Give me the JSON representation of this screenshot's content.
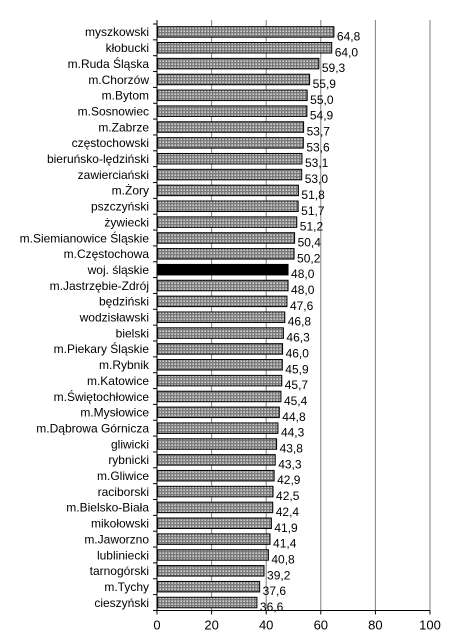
{
  "chart_data": {
    "type": "bar",
    "orientation": "horizontal",
    "categories": [
      "myszkowski",
      "kłobucki",
      "m.Ruda Śląska",
      "m.Chorzów",
      "m.Bytom",
      "m.Sosnowiec",
      "m.Zabrze",
      "częstochowski",
      "bieruńsko-lędziński",
      "zawierciański",
      "m.Żory",
      "pszczyński",
      "żywiecki",
      "m.Siemianowice Śląskie",
      "m.Częstochowa",
      "woj. śląskie",
      "m.Jastrzębie-Zdrój",
      "będziński",
      "wodzisławski",
      "bielski",
      "m.Piekary Śląskie",
      "m.Rybnik",
      "m.Katowice",
      "m.Świętochłowice",
      "m.Mysłowice",
      "m.Dąbrowa Górnicza",
      "gliwicki",
      "rybnicki",
      "m.Gliwice",
      "raciborski",
      "m.Bielsko-Biała",
      "mikołowski",
      "m.Jaworzno",
      "lubliniecki",
      "tarnogórski",
      "m.Tychy",
      "cieszyński"
    ],
    "values": [
      64.8,
      64.0,
      59.3,
      55.9,
      55.0,
      54.9,
      53.7,
      53.6,
      53.1,
      53.0,
      51.8,
      51.7,
      51.2,
      50.4,
      50.2,
      48.0,
      48.0,
      47.6,
      46.8,
      46.3,
      46.0,
      45.9,
      45.7,
      45.4,
      44.8,
      44.3,
      43.8,
      43.3,
      42.9,
      42.5,
      42.4,
      41.9,
      41.4,
      40.8,
      39.2,
      37.6,
      36.6
    ],
    "value_labels": [
      "64,8",
      "64,0",
      "59,3",
      "55,9",
      "55,0",
      "54,9",
      "53,7",
      "53,6",
      "53,1",
      "53,0",
      "51,8",
      "51,7",
      "51,2",
      "50,4",
      "50,2",
      "48,0",
      "48,0",
      "47,6",
      "46,8",
      "46,3",
      "46,0",
      "45,9",
      "45,7",
      "45,4",
      "44,8",
      "44,3",
      "43,8",
      "43,3",
      "42,9",
      "42,5",
      "42,4",
      "41,9",
      "41,4",
      "40,8",
      "39,2",
      "37,6",
      "36,6"
    ],
    "highlight_category": "woj. śląskie",
    "xlim": [
      0,
      100
    ],
    "x_ticks": [
      0,
      20,
      40,
      60,
      80,
      100
    ],
    "grid": "vertical",
    "title": "",
    "xlabel": "",
    "ylabel": "",
    "colors": {
      "bar_pattern_fg": "#ffffff",
      "bar_pattern_bg": "#7a7a7a",
      "highlight_bar": "#000000",
      "bar_outline": "#000000",
      "grid": "#808080",
      "text": "#000000"
    }
  }
}
